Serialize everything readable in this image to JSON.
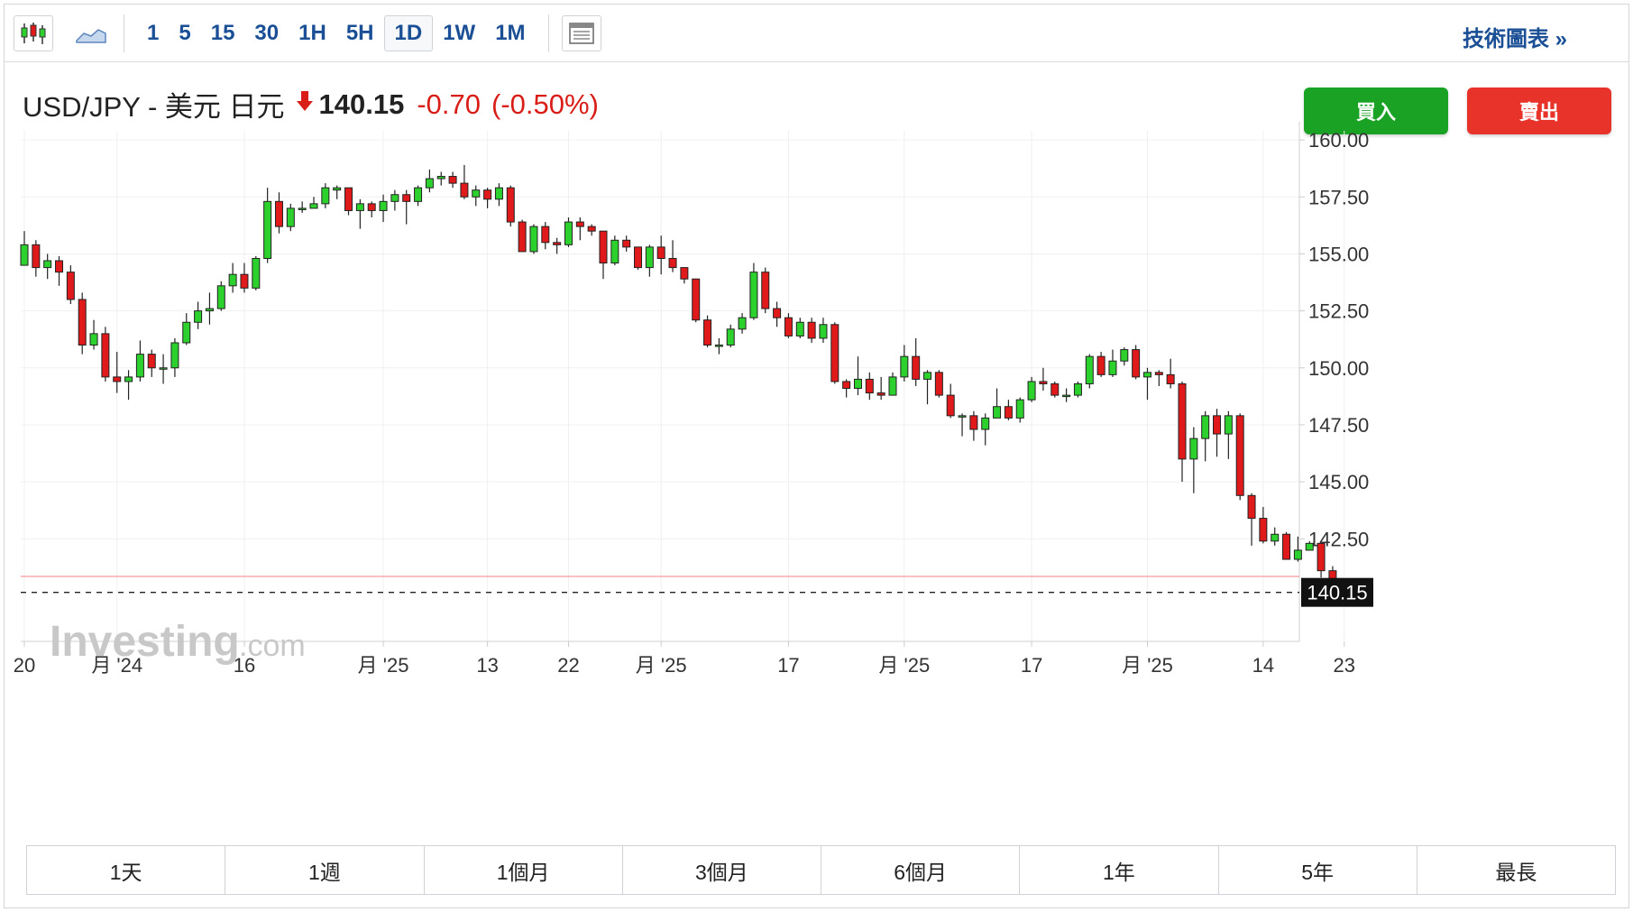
{
  "toolbar": {
    "candles_icon": "candlestick-icon",
    "area_icon": "area-chart-icon",
    "layout_icon": "layout-icon",
    "timeframes": [
      "1",
      "5",
      "15",
      "30",
      "1H",
      "5H",
      "1D",
      "1W",
      "1M"
    ],
    "active_timeframe": "1D",
    "advanced_link": "技術圖表 »"
  },
  "header": {
    "pair": "USD/JPY - 美元 日元",
    "arrow": "🡇",
    "price": "140.15",
    "change": "-0.70",
    "change_pct": "(-0.50%)"
  },
  "buttons": {
    "buy": "買入",
    "sell": "賣出"
  },
  "watermark": {
    "brand": "Investing",
    "suffix": ".com"
  },
  "ranges": [
    "1天",
    "1週",
    "1個月",
    "3個月",
    "6個月",
    "1年",
    "5年",
    "最長"
  ],
  "colors": {
    "up": "#2dd12d",
    "down": "#e0191b",
    "accent": "#1a4f95",
    "buy": "#1aa224",
    "sell": "#e8332b"
  },
  "chart_data": {
    "type": "candlestick",
    "yticks": [
      "160.00",
      "157.50",
      "155.00",
      "152.50",
      "150.00",
      "147.50",
      "145.00",
      "142.50"
    ],
    "ylim": [
      138.0,
      160.4
    ],
    "last_price": 140.15,
    "last_price_label": "140.15",
    "reference_line": 140.85,
    "xticks": [
      {
        "label": "20",
        "index": 0
      },
      {
        "label": "月 '24",
        "index": 8
      },
      {
        "label": "16",
        "index": 19
      },
      {
        "label": "月 '25",
        "index": 31
      },
      {
        "label": "13",
        "index": 40
      },
      {
        "label": "22",
        "index": 47
      },
      {
        "label": "月 '25",
        "index": 55
      },
      {
        "label": "17",
        "index": 66
      },
      {
        "label": "月 '25",
        "index": 76
      },
      {
        "label": "17",
        "index": 87
      },
      {
        "label": "月 '25",
        "index": 97
      },
      {
        "label": "14",
        "index": 107
      },
      {
        "label": "23",
        "index": 114
      }
    ],
    "candles": [
      [
        154.5,
        155.4,
        154.7,
        156.0
      ],
      [
        155.4,
        154.4,
        154.0,
        155.6
      ],
      [
        154.4,
        154.7,
        153.9,
        155.0
      ],
      [
        154.7,
        154.2,
        153.6,
        154.9
      ],
      [
        154.2,
        153.0,
        152.8,
        154.5
      ],
      [
        153.0,
        151.0,
        150.6,
        153.3
      ],
      [
        151.0,
        151.5,
        150.8,
        152.1
      ],
      [
        151.5,
        149.6,
        149.4,
        151.8
      ],
      [
        149.6,
        149.4,
        148.9,
        150.7
      ],
      [
        149.4,
        149.6,
        148.6,
        149.9
      ],
      [
        149.6,
        150.6,
        149.4,
        151.2
      ],
      [
        150.6,
        150.0,
        149.6,
        150.8
      ],
      [
        150.0,
        150.0,
        149.3,
        150.6
      ],
      [
        150.0,
        151.1,
        149.6,
        151.3
      ],
      [
        151.1,
        152.0,
        151.0,
        152.4
      ],
      [
        152.0,
        152.5,
        151.7,
        152.9
      ],
      [
        152.5,
        152.6,
        151.9,
        153.3
      ],
      [
        152.6,
        153.6,
        152.5,
        153.8
      ],
      [
        153.6,
        154.1,
        153.3,
        154.6
      ],
      [
        154.1,
        153.5,
        153.3,
        154.6
      ],
      [
        153.5,
        154.8,
        153.4,
        154.9
      ],
      [
        154.8,
        157.3,
        154.6,
        157.9
      ],
      [
        157.3,
        156.2,
        155.9,
        157.7
      ],
      [
        156.2,
        157.0,
        156.0,
        157.2
      ],
      [
        157.0,
        157.0,
        156.8,
        157.3
      ],
      [
        157.0,
        157.2,
        157.0,
        157.5
      ],
      [
        157.2,
        157.9,
        157.0,
        158.1
      ],
      [
        157.8,
        157.9,
        157.4,
        158.0
      ],
      [
        157.9,
        156.9,
        156.7,
        157.9
      ],
      [
        156.9,
        157.2,
        156.1,
        157.4
      ],
      [
        157.2,
        156.9,
        156.6,
        157.3
      ],
      [
        156.9,
        157.3,
        156.4,
        157.6
      ],
      [
        157.3,
        157.6,
        156.9,
        157.8
      ],
      [
        157.6,
        157.3,
        156.3,
        157.8
      ],
      [
        157.3,
        157.9,
        157.1,
        158.0
      ],
      [
        157.9,
        158.3,
        157.7,
        158.7
      ],
      [
        158.3,
        158.4,
        158.0,
        158.6
      ],
      [
        158.4,
        158.1,
        157.9,
        158.6
      ],
      [
        158.1,
        157.5,
        157.4,
        158.9
      ],
      [
        157.5,
        157.8,
        157.1,
        158.0
      ],
      [
        157.8,
        157.4,
        157.0,
        157.9
      ],
      [
        157.4,
        157.9,
        157.1,
        158.1
      ],
      [
        157.9,
        156.4,
        156.2,
        158.0
      ],
      [
        156.4,
        155.1,
        155.1,
        156.5
      ],
      [
        155.1,
        156.2,
        155.0,
        156.3
      ],
      [
        156.2,
        155.5,
        155.2,
        156.4
      ],
      [
        155.5,
        155.4,
        155.0,
        155.7
      ],
      [
        155.4,
        156.4,
        155.3,
        156.6
      ],
      [
        156.4,
        156.2,
        155.6,
        156.6
      ],
      [
        156.2,
        156.0,
        155.8,
        156.3
      ],
      [
        156.0,
        154.6,
        153.9,
        156.0
      ],
      [
        154.6,
        155.6,
        154.5,
        155.8
      ],
      [
        155.6,
        155.3,
        155.1,
        155.8
      ],
      [
        155.3,
        154.4,
        154.3,
        155.3
      ],
      [
        154.4,
        155.3,
        154.0,
        155.4
      ],
      [
        155.3,
        154.8,
        154.1,
        155.8
      ],
      [
        154.8,
        154.4,
        154.2,
        155.6
      ],
      [
        154.4,
        153.9,
        153.7,
        154.4
      ],
      [
        153.9,
        152.1,
        152.0,
        153.9
      ],
      [
        152.1,
        151.0,
        150.9,
        152.3
      ],
      [
        151.0,
        151.0,
        150.6,
        151.3
      ],
      [
        151.0,
        151.7,
        150.9,
        151.9
      ],
      [
        151.7,
        152.2,
        151.5,
        152.4
      ],
      [
        152.2,
        154.2,
        152.1,
        154.6
      ],
      [
        154.2,
        152.6,
        152.4,
        154.4
      ],
      [
        152.6,
        152.2,
        151.8,
        152.9
      ],
      [
        152.2,
        151.4,
        151.3,
        152.4
      ],
      [
        151.4,
        152.0,
        151.3,
        152.2
      ],
      [
        152.0,
        151.3,
        151.1,
        152.2
      ],
      [
        151.3,
        151.9,
        151.1,
        152.2
      ],
      [
        151.9,
        149.4,
        149.3,
        152.0
      ],
      [
        149.4,
        149.1,
        148.7,
        149.5
      ],
      [
        149.1,
        149.5,
        148.8,
        150.5
      ],
      [
        149.5,
        148.9,
        148.6,
        149.8
      ],
      [
        148.9,
        148.8,
        148.6,
        149.6
      ],
      [
        148.8,
        149.6,
        148.8,
        149.8
      ],
      [
        149.6,
        150.5,
        149.4,
        151.0
      ],
      [
        150.5,
        149.5,
        149.2,
        151.3
      ],
      [
        149.5,
        149.8,
        148.4,
        149.9
      ],
      [
        149.8,
        148.8,
        148.7,
        149.9
      ],
      [
        148.8,
        147.9,
        147.8,
        149.3
      ],
      [
        147.9,
        147.9,
        147.0,
        148.0
      ],
      [
        147.9,
        147.3,
        146.8,
        148.1
      ],
      [
        147.3,
        147.8,
        146.6,
        148.0
      ],
      [
        147.8,
        148.3,
        147.8,
        149.1
      ],
      [
        148.3,
        147.8,
        147.7,
        148.6
      ],
      [
        147.8,
        148.6,
        147.6,
        148.7
      ],
      [
        148.6,
        149.4,
        148.5,
        149.6
      ],
      [
        149.4,
        149.3,
        149.0,
        150.0
      ],
      [
        149.3,
        148.8,
        148.7,
        149.4
      ],
      [
        148.8,
        148.8,
        148.5,
        149.1
      ],
      [
        148.8,
        149.3,
        148.7,
        149.4
      ],
      [
        149.3,
        150.5,
        149.1,
        150.6
      ],
      [
        150.5,
        149.7,
        149.6,
        150.7
      ],
      [
        149.7,
        150.3,
        149.6,
        150.8
      ],
      [
        150.3,
        150.8,
        150.1,
        150.9
      ],
      [
        150.8,
        149.6,
        149.5,
        151.0
      ],
      [
        149.6,
        149.8,
        148.6,
        150.0
      ],
      [
        149.8,
        149.7,
        149.2,
        149.9
      ],
      [
        149.7,
        149.3,
        149.1,
        150.4
      ],
      [
        149.3,
        146.0,
        145.0,
        149.4
      ],
      [
        146.0,
        146.9,
        144.5,
        147.4
      ],
      [
        146.9,
        147.9,
        145.9,
        148.1
      ],
      [
        147.9,
        147.1,
        146.1,
        148.2
      ],
      [
        147.1,
        147.9,
        146.0,
        148.1
      ],
      [
        147.9,
        144.4,
        144.2,
        148.0
      ],
      [
        144.4,
        143.4,
        142.2,
        144.5
      ],
      [
        143.4,
        142.4,
        142.3,
        143.9
      ],
      [
        142.4,
        142.7,
        142.2,
        143.0
      ],
      [
        142.7,
        141.6,
        141.6,
        142.8
      ],
      [
        141.6,
        142.0,
        141.5,
        142.6
      ],
      [
        142.0,
        142.3,
        142.0,
        142.4
      ],
      [
        142.3,
        141.1,
        140.8,
        142.3
      ],
      [
        141.1,
        140.15,
        140.1,
        141.3
      ]
    ]
  }
}
